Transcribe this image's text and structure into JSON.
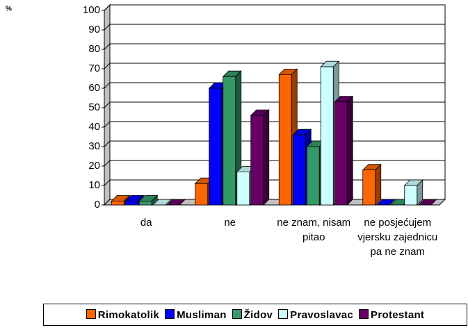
{
  "chart_data": {
    "type": "bar3d",
    "ylabel": "%",
    "categories": [
      "da",
      "ne",
      "ne znam, nisam pitao",
      "ne posjećujem vjersku zajednicu pa ne znam"
    ],
    "series": [
      {
        "name": "Rimokatolik",
        "color": "#FF6600",
        "values": [
          2,
          11,
          67,
          18
        ]
      },
      {
        "name": "Musliman",
        "color": "#0000FF",
        "values": [
          2,
          60,
          36,
          0
        ]
      },
      {
        "name": "Židov",
        "color": "#339966",
        "values": [
          2,
          66,
          30,
          0
        ]
      },
      {
        "name": "Pravoslavac",
        "color": "#CCFFFF",
        "values": [
          0,
          17,
          71,
          10
        ]
      },
      {
        "name": "Protestant",
        "color": "#660066",
        "values": [
          0,
          46,
          53,
          0
        ]
      }
    ],
    "ylim": [
      0,
      100
    ],
    "yticks": [
      0,
      10,
      20,
      30,
      40,
      50,
      60,
      70,
      80,
      90,
      100
    ],
    "grid": true,
    "legend": "bottom"
  }
}
